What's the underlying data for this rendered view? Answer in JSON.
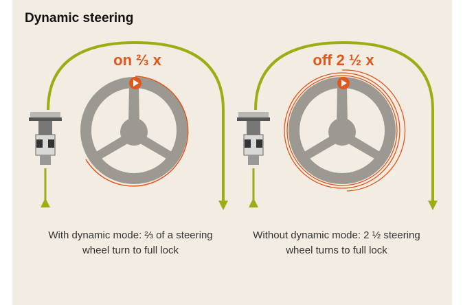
{
  "header": {
    "title": "Dynamic steering"
  },
  "panels": [
    {
      "label": "on ⅔ x",
      "caption": "With dynamic mode: ⅔ of a steering wheel turn to full lock"
    },
    {
      "label": "off 2 ½ x",
      "caption": "Without dynamic mode: 2 ½ steering wheel turns to full lock"
    }
  ]
}
